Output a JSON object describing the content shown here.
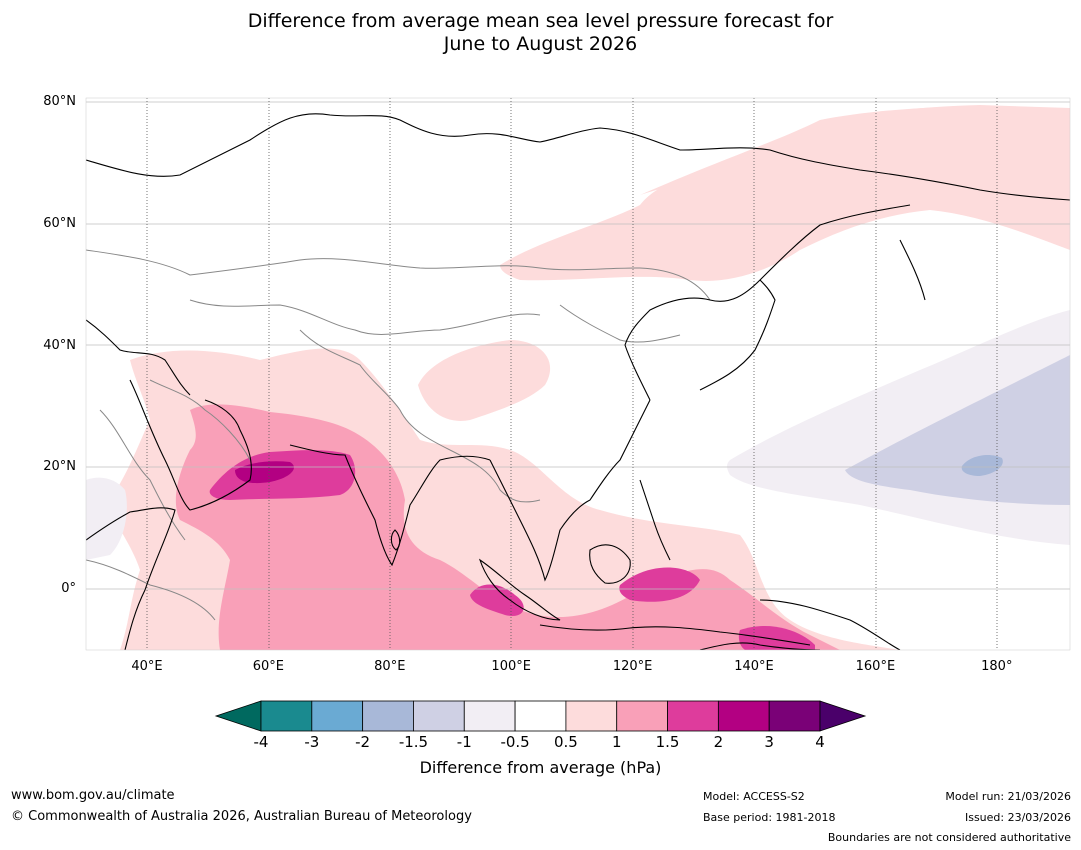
{
  "title": {
    "line1": "Difference from average mean sea level pressure forecast for",
    "line2": "June to August 2026"
  },
  "map": {
    "projection": "equirectangular",
    "lon_range": [
      30,
      192
    ],
    "lat_range": [
      -10,
      82
    ],
    "lat_ticks": [
      {
        "value": 80,
        "label": "80°N"
      },
      {
        "value": 60,
        "label": "60°N"
      },
      {
        "value": 40,
        "label": "40°N"
      },
      {
        "value": 20,
        "label": "20°N"
      },
      {
        "value": 0,
        "label": "0°"
      }
    ],
    "lon_ticks": [
      {
        "value": 40,
        "label": "40°E"
      },
      {
        "value": 60,
        "label": "60°E"
      },
      {
        "value": 80,
        "label": "80°E"
      },
      {
        "value": 100,
        "label": "100°E"
      },
      {
        "value": 120,
        "label": "120°E"
      },
      {
        "value": 140,
        "label": "140°E"
      },
      {
        "value": 160,
        "label": "160°E"
      },
      {
        "value": 180,
        "label": "180°"
      }
    ]
  },
  "colorbar": {
    "label": "Difference from average (hPa)",
    "ticks": [
      "-4",
      "-3",
      "-2",
      "-1.5",
      "-1",
      "-0.5",
      "0.5",
      "1",
      "1.5",
      "2",
      "3",
      "4"
    ],
    "colors": [
      "#1a8a8f",
      "#6aaad3",
      "#a8b8d8",
      "#cfd0e4",
      "#f2eef4",
      "#ffffff",
      "#fddcdc",
      "#f9a0b8",
      "#de3c9c",
      "#b30082",
      "#7a0177"
    ],
    "under_color": "#00695f",
    "over_color": "#4a006a"
  },
  "footer": {
    "url": "www.bom.gov.au/climate",
    "copyright": "© Commonwealth of Australia 2026, Australian Bureau of Meteorology",
    "model": "Model: ACCESS-S2",
    "base_period": "Base period: 1981-2018",
    "model_run": "Model run: 21/03/2026",
    "issued": "Issued: 23/03/2026",
    "disclaimer": "Boundaries are not considered authoritative"
  }
}
